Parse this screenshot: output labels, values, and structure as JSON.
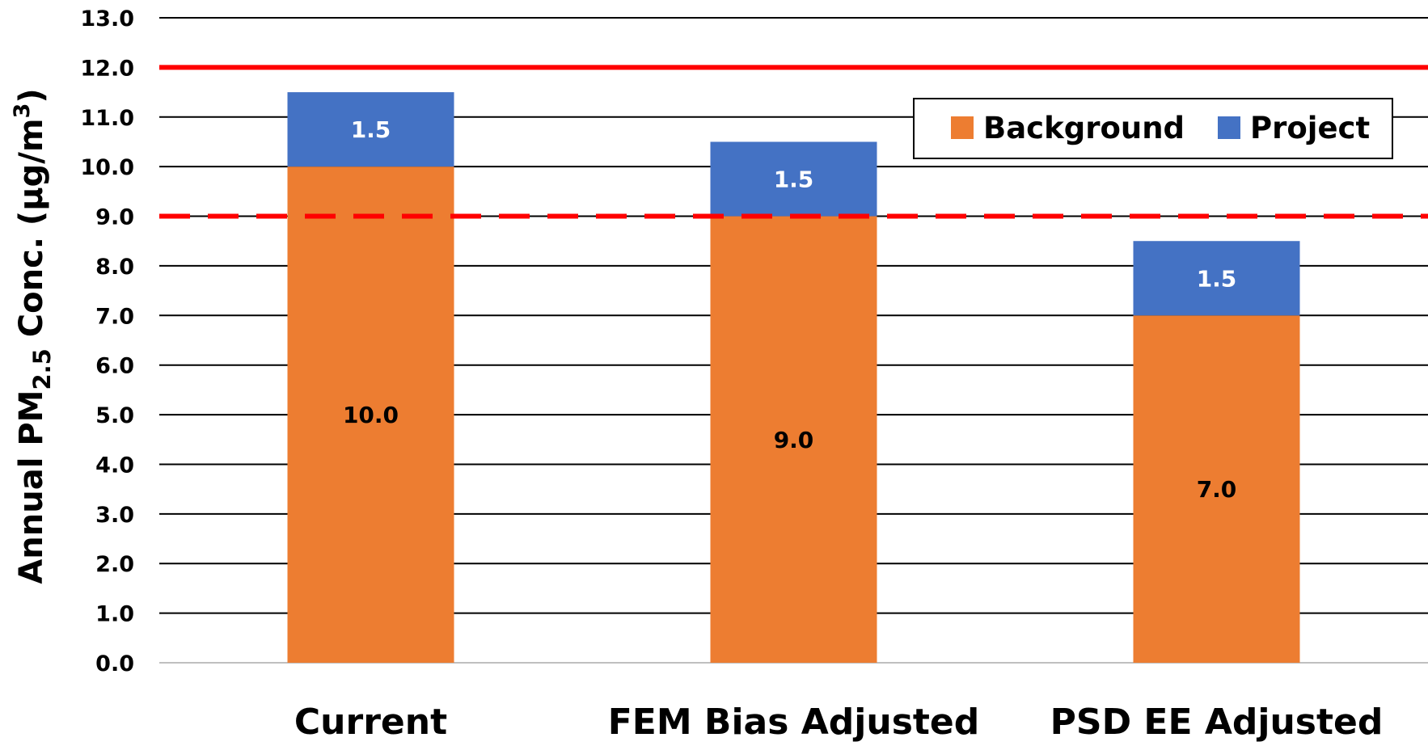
{
  "chart_data": {
    "type": "bar",
    "stacked": true,
    "categories": [
      "Current",
      "FEM Bias Adjusted",
      "PSD EE Adjusted"
    ],
    "series": [
      {
        "name": "Background",
        "values": [
          10.0,
          9.0,
          7.0
        ],
        "labels": [
          "10.0",
          "9.0",
          "7.0"
        ],
        "color": "#ED7D31",
        "label_color": "#000000"
      },
      {
        "name": "Project",
        "values": [
          1.5,
          1.5,
          1.5
        ],
        "labels": [
          "1.5",
          "1.5",
          "1.5"
        ],
        "color": "#4472C4",
        "label_color": "#FFFFFF"
      }
    ],
    "ylabel": {
      "prefix": "Annual PM",
      "sub": "2.5",
      "middle": " Conc. (μg/m",
      "sup": "3",
      "suffix": ")"
    },
    "ylim": [
      0,
      13
    ],
    "yticks": [
      "0.0",
      "1.0",
      "2.0",
      "3.0",
      "4.0",
      "5.0",
      "6.0",
      "7.0",
      "8.0",
      "9.0",
      "10.0",
      "11.0",
      "12.0",
      "13.0"
    ],
    "grid": true,
    "legend_position": "top-right",
    "reference_lines": [
      {
        "value": 12.0,
        "style": "solid",
        "color": "#FF0000"
      },
      {
        "value": 9.0,
        "style": "dashed",
        "color": "#FF0000"
      }
    ]
  }
}
